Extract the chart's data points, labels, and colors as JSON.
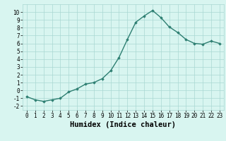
{
  "x": [
    0,
    1,
    2,
    3,
    4,
    5,
    6,
    7,
    8,
    9,
    10,
    11,
    12,
    13,
    14,
    15,
    16,
    17,
    18,
    19,
    20,
    21,
    22,
    23
  ],
  "y": [
    -0.8,
    -1.2,
    -1.4,
    -1.2,
    -1.0,
    -0.2,
    0.2,
    0.8,
    1.0,
    1.5,
    2.5,
    4.2,
    6.5,
    8.7,
    9.5,
    10.2,
    9.3,
    8.1,
    7.4,
    6.5,
    6.0,
    5.9,
    6.3,
    6.0
  ],
  "line_color": "#2e7f72",
  "marker": "D",
  "marker_size": 1.8,
  "line_width": 1.0,
  "xlabel": "Humidex (Indice chaleur)",
  "xlim": [
    -0.5,
    23.5
  ],
  "ylim": [
    -2.5,
    11.0
  ],
  "yticks": [
    -2,
    -1,
    0,
    1,
    2,
    3,
    4,
    5,
    6,
    7,
    8,
    9,
    10
  ],
  "xticks": [
    0,
    1,
    2,
    3,
    4,
    5,
    6,
    7,
    8,
    9,
    10,
    11,
    12,
    13,
    14,
    15,
    16,
    17,
    18,
    19,
    20,
    21,
    22,
    23
  ],
  "bg_color": "#d8f5f0",
  "grid_color": "#aad8d2",
  "tick_fontsize": 5.5,
  "label_fontsize": 7.5
}
